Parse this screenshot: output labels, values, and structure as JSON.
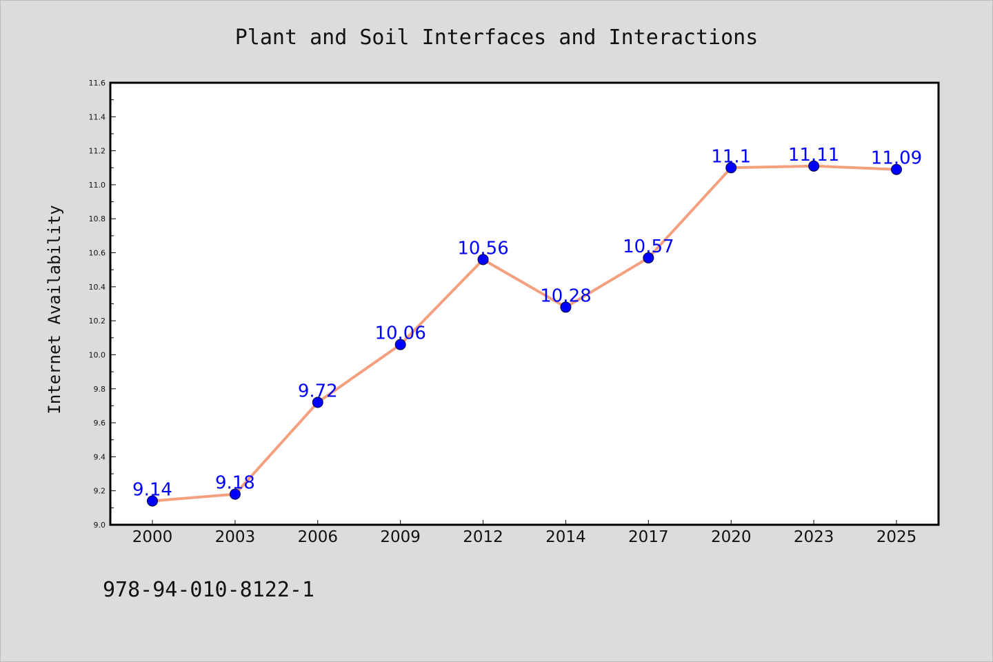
{
  "chart_data": {
    "type": "line",
    "title": "Plant and Soil Interfaces and Interactions",
    "xlabel": "",
    "ylabel": "Internet Availability",
    "categories": [
      "2000",
      "2003",
      "2006",
      "2009",
      "2012",
      "2014",
      "2017",
      "2020",
      "2023",
      "2025"
    ],
    "series": [
      {
        "values": [
          9.14,
          9.18,
          9.72,
          10.06,
          10.56,
          10.28,
          10.57,
          11.1,
          11.11,
          11.09
        ],
        "labels": [
          "9.14",
          "9.18",
          "9.72",
          "10.06",
          "10.56",
          "10.28",
          "10.57",
          "11.1",
          "11.11",
          "11.09"
        ],
        "line_color": "#f4a07e",
        "marker_color": "#0000ff"
      }
    ],
    "ylim": [
      9.0,
      11.6
    ],
    "yticks": [
      "9.0",
      "9.2",
      "9.4",
      "9.6",
      "9.8",
      "10.0",
      "10.2",
      "10.4",
      "10.6",
      "10.8",
      "11.0",
      "11.2",
      "11.4",
      "11.6"
    ],
    "grid": false,
    "legend": "none"
  },
  "footnote": "978-94-010-8122-1",
  "colors": {
    "background": "#dcdcdc",
    "plot_background": "#ffffff",
    "axis": "#000000",
    "label": "#0000ff"
  }
}
